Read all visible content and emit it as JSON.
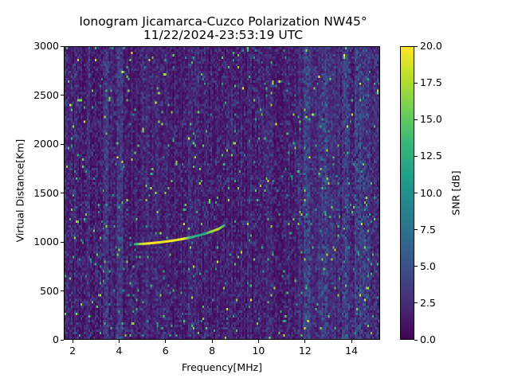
{
  "chart_data": {
    "type": "heatmap",
    "title": "Ionogram Jicamarca-Cuzco Polarization NW45°",
    "subtitle": "11/22/2024-23:53:19 UTC",
    "xlabel": "Frequency[MHz]",
    "ylabel": "Virtual Distance[Km]",
    "xlim": [
      1.62,
      15.23
    ],
    "ylim": [
      0,
      3000
    ],
    "xticks": [
      2,
      4,
      6,
      8,
      10,
      12,
      14
    ],
    "yticks": [
      0,
      500,
      1000,
      1500,
      2000,
      2500,
      3000
    ],
    "colorbar": {
      "label": "SNR [dB]",
      "range": [
        0,
        20
      ],
      "ticks": [
        "0.0",
        "2.5",
        "5.0",
        "7.5",
        "10.0",
        "12.5",
        "15.0",
        "17.5",
        "20.0"
      ],
      "colormap": [
        "#440154",
        "#482878",
        "#3e4989",
        "#31688e",
        "#26828e",
        "#1f9e89",
        "#35b779",
        "#6ece58",
        "#b5de2b",
        "#fde725"
      ]
    },
    "trace": [
      {
        "f": 4.6,
        "d": 985,
        "snr": 12
      },
      {
        "f": 4.9,
        "d": 988,
        "snr": 18
      },
      {
        "f": 5.2,
        "d": 993,
        "snr": 20
      },
      {
        "f": 5.5,
        "d": 1000,
        "snr": 20
      },
      {
        "f": 5.8,
        "d": 1008,
        "snr": 19
      },
      {
        "f": 6.1,
        "d": 1017,
        "snr": 20
      },
      {
        "f": 6.4,
        "d": 1028,
        "snr": 19
      },
      {
        "f": 6.7,
        "d": 1040,
        "snr": 20
      },
      {
        "f": 7.0,
        "d": 1055,
        "snr": 13
      },
      {
        "f": 7.6,
        "d": 1090,
        "snr": 12
      },
      {
        "f": 7.9,
        "d": 1115,
        "snr": 17
      },
      {
        "f": 8.2,
        "d": 1140,
        "snr": 18
      },
      {
        "f": 8.5,
        "d": 1185,
        "snr": 12
      }
    ],
    "interference_frequencies_mhz": [
      3.4,
      4.0,
      12.05,
      12.8,
      13.7,
      14.3,
      14.6
    ]
  }
}
